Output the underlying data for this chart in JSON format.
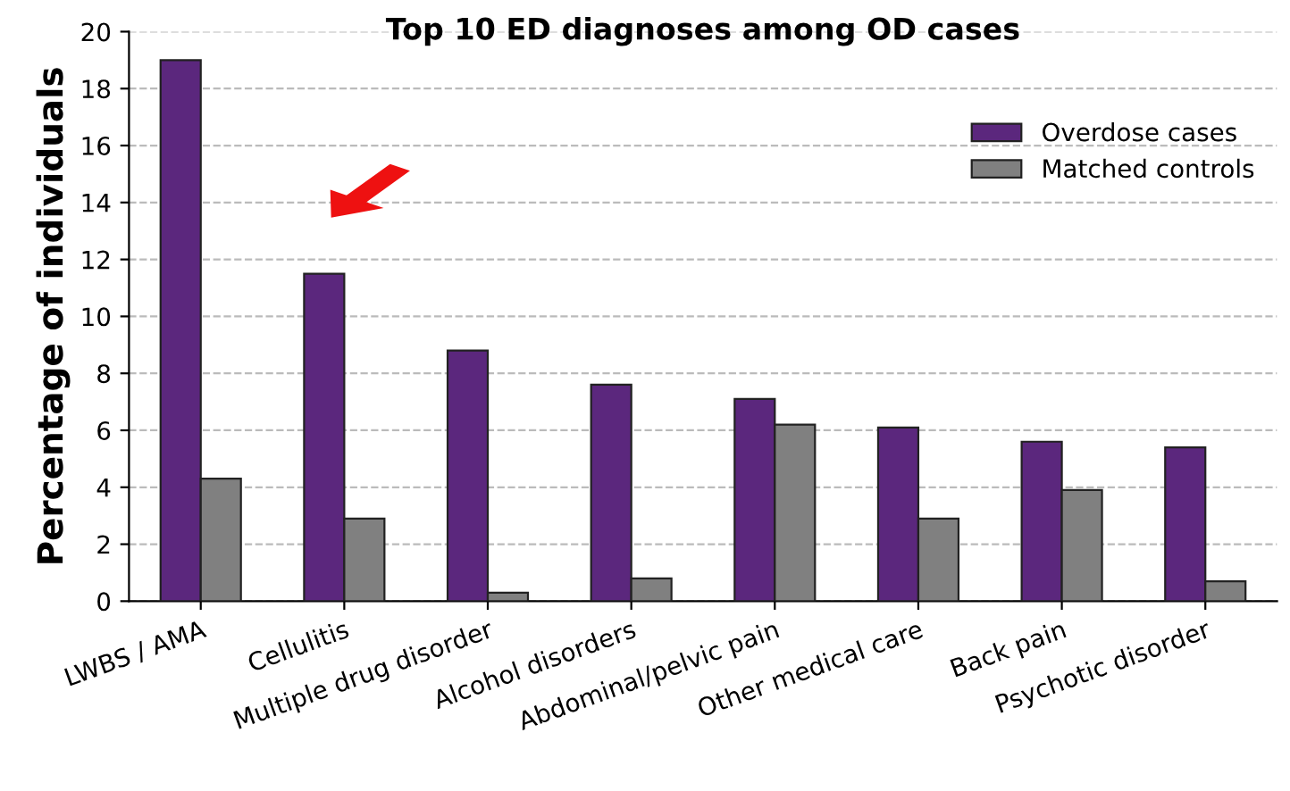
{
  "chart_data": {
    "type": "bar",
    "title": "Top 10 ED diagnoses among OD cases",
    "ylabel": "Percentage of individuals",
    "categories": [
      "LWBS / AMA",
      "Cellulitis",
      "Multiple drug disorder",
      "Alcohol disorders",
      "Abdominal/pelvic pain",
      "Other medical care",
      "Back pain",
      "Psychotic disorder"
    ],
    "series": [
      {
        "name": "Overdose cases",
        "color": "#5b277d",
        "values": [
          19,
          11.5,
          8.8,
          7.6,
          7.1,
          6.1,
          5.6,
          5.4
        ]
      },
      {
        "name": "Matched controls",
        "color": "#808080",
        "values": [
          4.3,
          2.9,
          0.3,
          0.8,
          6.2,
          2.9,
          3.9,
          0.7
        ]
      }
    ],
    "ylim": [
      0,
      20
    ],
    "yticks": [
      0,
      2,
      4,
      6,
      8,
      10,
      12,
      14,
      16,
      18,
      20
    ],
    "grid": "y",
    "legend": "top right"
  }
}
